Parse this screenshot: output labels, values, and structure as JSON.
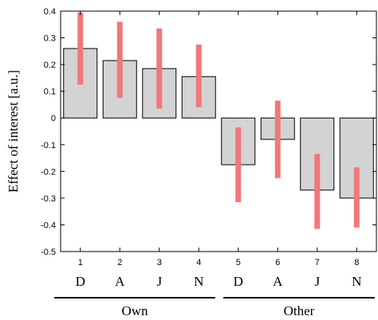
{
  "chart_data": {
    "type": "bar",
    "categories": [
      "1",
      "2",
      "3",
      "4",
      "5",
      "6",
      "7",
      "8"
    ],
    "values": [
      0.26,
      0.215,
      0.185,
      0.155,
      -0.175,
      -0.08,
      -0.27,
      -0.3
    ],
    "error_bars": [
      [
        0.125,
        0.395
      ],
      [
        0.075,
        0.36
      ],
      [
        0.035,
        0.335
      ],
      [
        0.04,
        0.275
      ],
      [
        -0.315,
        -0.035
      ],
      [
        -0.225,
        0.065
      ],
      [
        -0.415,
        -0.135
      ],
      [
        -0.41,
        -0.185
      ]
    ],
    "ylabel": "Effect of interest [a.u.]",
    "xlabel": "",
    "ylim": [
      -0.5,
      0.4
    ],
    "yticks": [
      0.4,
      0.3,
      0.2,
      0.1,
      0,
      -0.1,
      -0.2,
      -0.3,
      -0.4,
      -0.5
    ],
    "ytick_labels": [
      "0.4",
      "0.3",
      "0.2",
      "0.1",
      "0",
      "-0.1",
      "-0.2",
      "-0.3",
      "-0.4",
      "-0.5"
    ],
    "condition_letters": [
      "D",
      "A",
      "J",
      "N",
      "D",
      "A",
      "J",
      "N"
    ],
    "groups": [
      {
        "name": "Own",
        "members": [
          "1",
          "2",
          "3",
          "4"
        ]
      },
      {
        "name": "Other",
        "members": [
          "5",
          "6",
          "7",
          "8"
        ]
      }
    ],
    "grid": false,
    "colors": {
      "bar_fill": "#d3d3d3",
      "bar_edge": "#000000",
      "error_bar": "#f07878"
    }
  }
}
